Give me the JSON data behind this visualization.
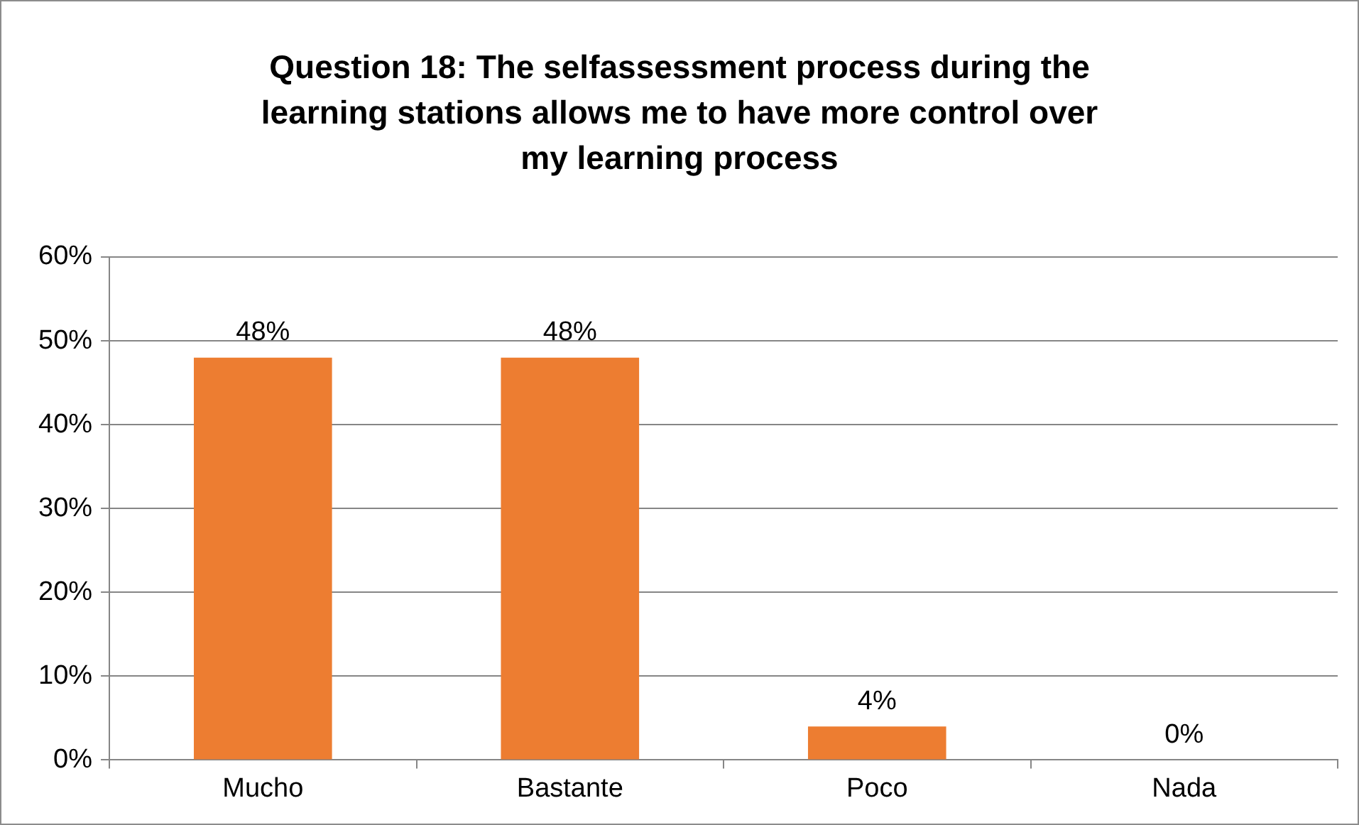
{
  "chart_data": {
    "type": "bar",
    "title": "Question 18: The selfassessment process during the learning stations allows me to have more control over my learning process",
    "categories": [
      "Mucho",
      "Bastante",
      "Poco",
      "Nada"
    ],
    "values": [
      48,
      48,
      4,
      0
    ],
    "value_labels": [
      "48%",
      "48%",
      "4%",
      "0%"
    ],
    "color": "#ed7d31",
    "ylim": [
      0,
      60
    ],
    "yticks": [
      {
        "value": 0,
        "label": "0%"
      },
      {
        "value": 10,
        "label": "10%"
      },
      {
        "value": 20,
        "label": "20%"
      },
      {
        "value": 30,
        "label": "30%"
      },
      {
        "value": 40,
        "label": "40%"
      },
      {
        "value": 50,
        "label": "50%"
      },
      {
        "value": 60,
        "label": "60%"
      }
    ],
    "grid": "y",
    "legend": false
  }
}
